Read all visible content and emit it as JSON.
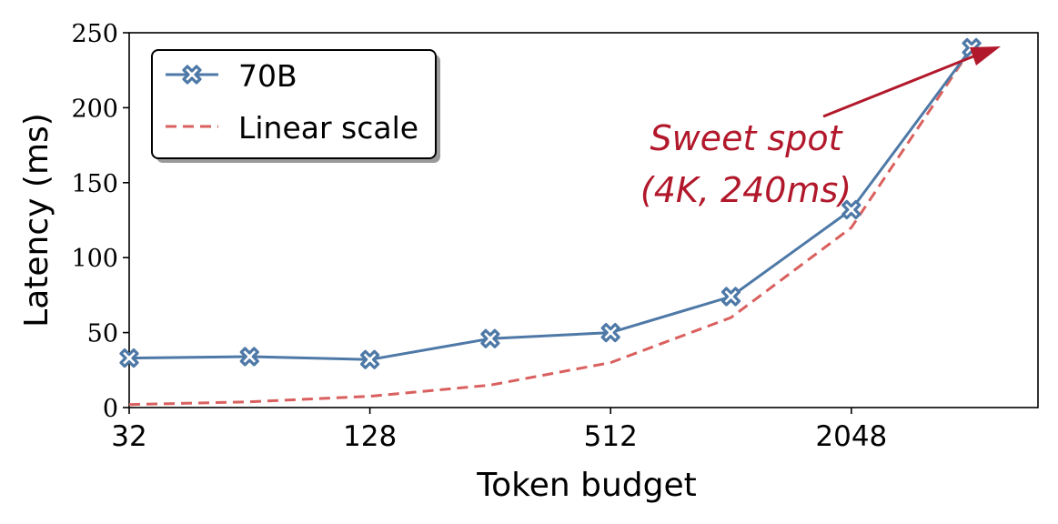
{
  "chart_data": {
    "type": "line",
    "xscale": "log2",
    "xlabel": "Token budget",
    "ylabel": "Latency (ms)",
    "xlim": [
      32,
      6000
    ],
    "ylim": [
      0,
      250
    ],
    "x_ticks": [
      32,
      128,
      512,
      2048
    ],
    "x_tick_labels": [
      "32",
      "128",
      "512",
      "2048"
    ],
    "y_ticks": [
      0,
      50,
      100,
      150,
      200,
      250
    ],
    "y_tick_labels": [
      "0",
      "50",
      "100",
      "150",
      "200",
      "250"
    ],
    "x": [
      32,
      64,
      128,
      256,
      512,
      1024,
      2048,
      4096
    ],
    "series": [
      {
        "name": "70B",
        "color": "#4e79a7",
        "style": "solid",
        "marker": "x-marker",
        "values": [
          33,
          34,
          32,
          46,
          50,
          74,
          132,
          240
        ]
      },
      {
        "name": "Linear scale",
        "color": "#d9605e",
        "style": "dashed",
        "marker": "none",
        "values": [
          2,
          3.8,
          7.5,
          15,
          30,
          60,
          120,
          240
        ]
      }
    ],
    "legend_position": "top-left",
    "grid": false,
    "annotation": {
      "lines": [
        "Sweet spot",
        "(4K, 240ms)"
      ],
      "color": "#b2182b",
      "points_to": {
        "x": 4096,
        "y": 240
      }
    }
  }
}
